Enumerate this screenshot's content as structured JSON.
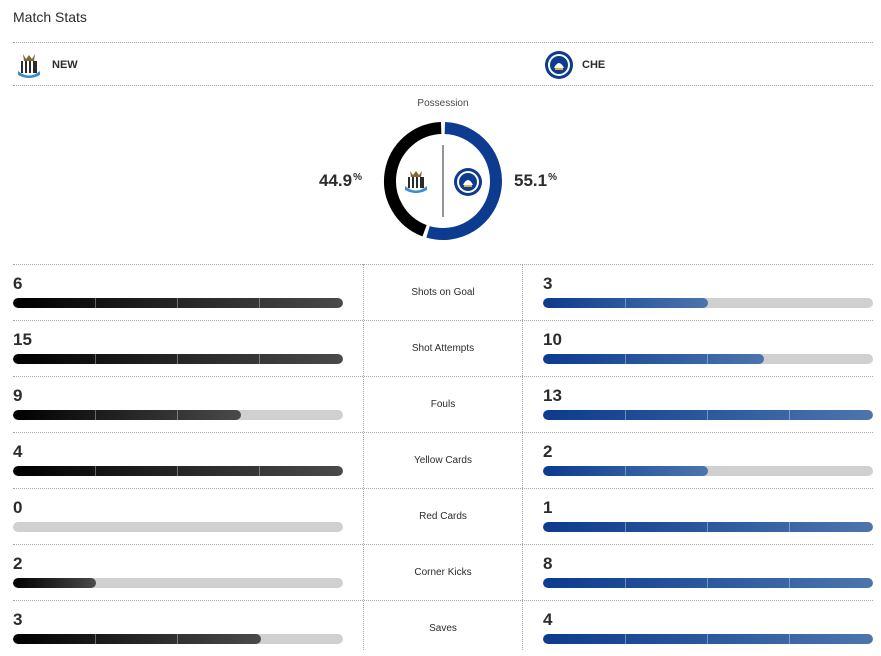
{
  "header": {
    "title": "Match Stats"
  },
  "teams": {
    "home": {
      "abbr": "NEW",
      "logo_icon": "newcastle-crest-icon",
      "color": "#000000"
    },
    "away": {
      "abbr": "CHE",
      "logo_icon": "chelsea-crest-icon",
      "color": "#0c3b8f"
    }
  },
  "possession": {
    "label": "Possession",
    "home_value": "44.9",
    "away_value": "55.1",
    "unit": "%",
    "home_pct": 44.9,
    "away_pct": 55.1
  },
  "stats": [
    {
      "label": "Shots on Goal",
      "home": "6",
      "away": "3",
      "home_pct": 100,
      "away_pct": 50
    },
    {
      "label": "Shot Attempts",
      "home": "15",
      "away": "10",
      "home_pct": 100,
      "away_pct": 67
    },
    {
      "label": "Fouls",
      "home": "9",
      "away": "13",
      "home_pct": 69,
      "away_pct": 100
    },
    {
      "label": "Yellow Cards",
      "home": "4",
      "away": "2",
      "home_pct": 100,
      "away_pct": 50
    },
    {
      "label": "Red Cards",
      "home": "0",
      "away": "1",
      "home_pct": 0,
      "away_pct": 100
    },
    {
      "label": "Corner Kicks",
      "home": "2",
      "away": "8",
      "home_pct": 25,
      "away_pct": 100
    },
    {
      "label": "Saves",
      "home": "3",
      "away": "4",
      "home_pct": 75,
      "away_pct": 100
    }
  ]
}
